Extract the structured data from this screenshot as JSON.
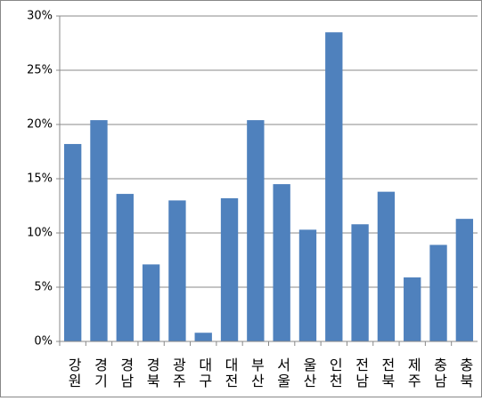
{
  "chart_data": {
    "type": "bar",
    "categories": [
      "강원",
      "경기",
      "경남",
      "경북",
      "광주",
      "대구",
      "대전",
      "부산",
      "서울",
      "울산",
      "인천",
      "전남",
      "전북",
      "제주",
      "충남",
      "충북"
    ],
    "values": [
      18.2,
      20.4,
      13.6,
      7.1,
      13.0,
      0.8,
      13.2,
      20.4,
      14.5,
      10.3,
      28.5,
      10.8,
      13.8,
      5.9,
      8.9,
      11.3
    ],
    "color": "#4f81bd",
    "ylim": [
      0,
      30
    ],
    "yticks": [
      {
        "value": 0,
        "label": "0%"
      },
      {
        "value": 5,
        "label": "5%"
      },
      {
        "value": 10,
        "label": "10%"
      },
      {
        "value": 15,
        "label": "15%"
      },
      {
        "value": 20,
        "label": "20%"
      },
      {
        "value": 25,
        "label": "25%"
      },
      {
        "value": 30,
        "label": "30%"
      }
    ],
    "grid": true
  }
}
